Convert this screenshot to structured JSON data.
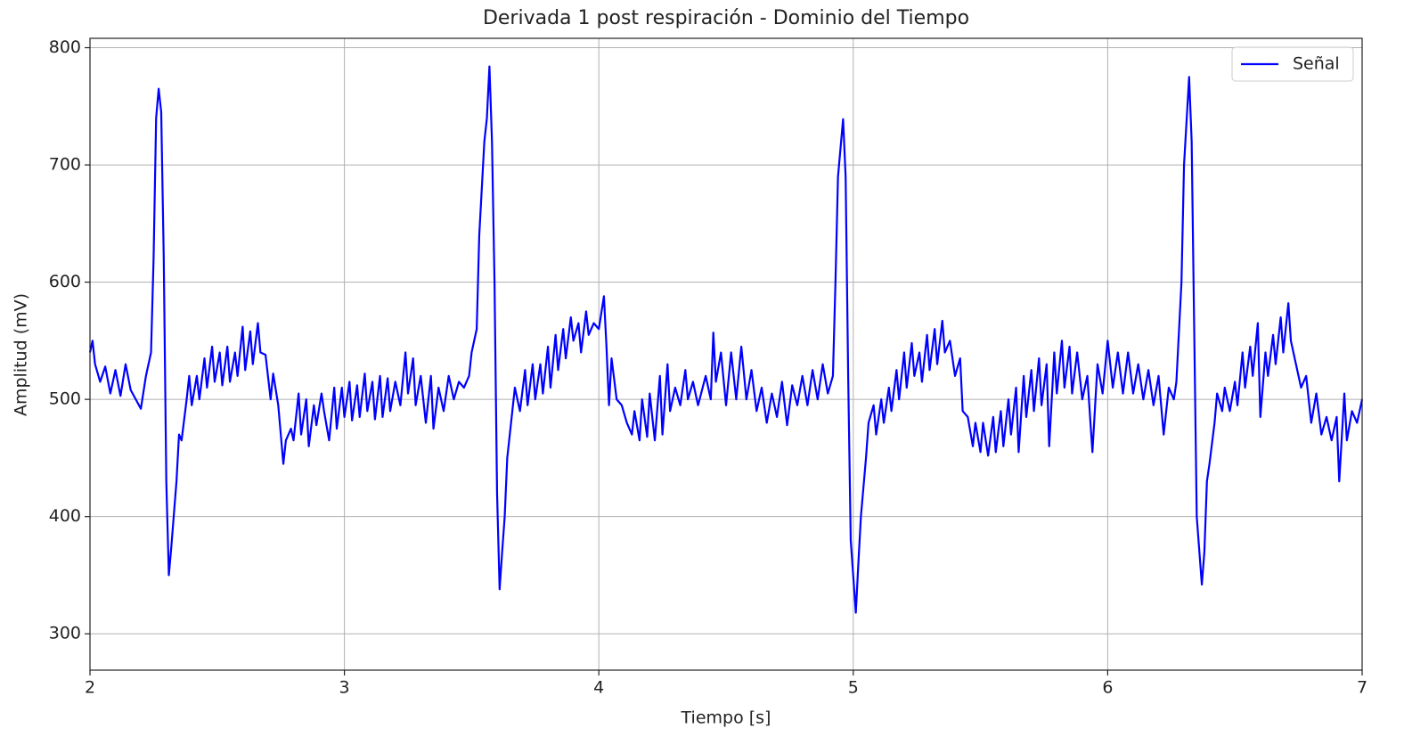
{
  "chart_data": {
    "type": "line",
    "title": "Derivada 1 post respiración - Dominio del Tiempo",
    "xlabel": "Tiempo [s]",
    "ylabel": "Amplitud (mV)",
    "xlim": [
      2,
      7
    ],
    "ylim": [
      269,
      808
    ],
    "xticks": [
      2,
      3,
      4,
      5,
      6,
      7
    ],
    "yticks": [
      300,
      400,
      500,
      600,
      700,
      800
    ],
    "grid": true,
    "legend": "upper right",
    "x": [
      2.0,
      2.01,
      2.02,
      2.04,
      2.06,
      2.08,
      2.1,
      2.12,
      2.14,
      2.16,
      2.18,
      2.2,
      2.22,
      2.24,
      2.25,
      2.26,
      2.27,
      2.28,
      2.29,
      2.3,
      2.31,
      2.32,
      2.34,
      2.35,
      2.36,
      2.38,
      2.39,
      2.4,
      2.42,
      2.43,
      2.45,
      2.46,
      2.48,
      2.49,
      2.51,
      2.52,
      2.54,
      2.55,
      2.57,
      2.58,
      2.6,
      2.61,
      2.63,
      2.64,
      2.66,
      2.67,
      2.69,
      2.71,
      2.72,
      2.74,
      2.76,
      2.77,
      2.79,
      2.8,
      2.82,
      2.83,
      2.85,
      2.86,
      2.88,
      2.89,
      2.91,
      2.92,
      2.94,
      2.96,
      2.97,
      2.99,
      3.0,
      3.02,
      3.03,
      3.05,
      3.06,
      3.08,
      3.09,
      3.11,
      3.12,
      3.14,
      3.15,
      3.17,
      3.18,
      3.2,
      3.22,
      3.24,
      3.25,
      3.27,
      3.28,
      3.3,
      3.32,
      3.34,
      3.35,
      3.37,
      3.39,
      3.41,
      3.43,
      3.45,
      3.47,
      3.49,
      3.5,
      3.52,
      3.53,
      3.55,
      3.56,
      3.57,
      3.58,
      3.59,
      3.6,
      3.61,
      3.62,
      3.63,
      3.64,
      3.65,
      3.67,
      3.69,
      3.71,
      3.72,
      3.74,
      3.75,
      3.77,
      3.78,
      3.8,
      3.81,
      3.83,
      3.84,
      3.86,
      3.87,
      3.89,
      3.9,
      3.92,
      3.93,
      3.95,
      3.96,
      3.98,
      4.0,
      4.02,
      4.03,
      4.04,
      4.05,
      4.07,
      4.09,
      4.11,
      4.13,
      4.14,
      4.16,
      4.17,
      4.19,
      4.2,
      4.22,
      4.24,
      4.25,
      4.27,
      4.28,
      4.3,
      4.32,
      4.34,
      4.35,
      4.37,
      4.39,
      4.42,
      4.44,
      4.45,
      4.46,
      4.48,
      4.5,
      4.52,
      4.54,
      4.56,
      4.58,
      4.6,
      4.62,
      4.64,
      4.66,
      4.68,
      4.7,
      4.72,
      4.74,
      4.76,
      4.78,
      4.8,
      4.82,
      4.84,
      4.86,
      4.88,
      4.9,
      4.92,
      4.93,
      4.94,
      4.96,
      4.97,
      4.98,
      4.99,
      5.01,
      5.02,
      5.03,
      5.05,
      5.06,
      5.08,
      5.09,
      5.11,
      5.12,
      5.14,
      5.15,
      5.17,
      5.18,
      5.2,
      5.21,
      5.23,
      5.24,
      5.26,
      5.27,
      5.29,
      5.3,
      5.32,
      5.33,
      5.35,
      5.36,
      5.38,
      5.4,
      5.42,
      5.43,
      5.45,
      5.47,
      5.48,
      5.5,
      5.51,
      5.53,
      5.55,
      5.56,
      5.58,
      5.59,
      5.61,
      5.62,
      5.64,
      5.65,
      5.67,
      5.68,
      5.7,
      5.71,
      5.73,
      5.74,
      5.76,
      5.77,
      5.79,
      5.8,
      5.82,
      5.83,
      5.85,
      5.86,
      5.88,
      5.9,
      5.92,
      5.94,
      5.96,
      5.98,
      6.0,
      6.02,
      6.04,
      6.06,
      6.08,
      6.1,
      6.12,
      6.14,
      6.16,
      6.18,
      6.2,
      6.22,
      6.24,
      6.26,
      6.27,
      6.29,
      6.3,
      6.32,
      6.33,
      6.34,
      6.35,
      6.37,
      6.38,
      6.39,
      6.4,
      6.42,
      6.43,
      6.45,
      6.46,
      6.48,
      6.5,
      6.51,
      6.53,
      6.54,
      6.56,
      6.57,
      6.59,
      6.6,
      6.62,
      6.63,
      6.65,
      6.66,
      6.68,
      6.69,
      6.71,
      6.72,
      6.74,
      6.76,
      6.78,
      6.8,
      6.82,
      6.84,
      6.86,
      6.88,
      6.9,
      6.91,
      6.93,
      6.94,
      6.96,
      6.98,
      7.0
    ],
    "series": [
      {
        "name": "Señal",
        "color": "#0000ff",
        "values": [
          540,
          550,
          530,
          515,
          528,
          505,
          525,
          503,
          530,
          508,
          500,
          492,
          520,
          540,
          620,
          740,
          765,
          745,
          620,
          430,
          350,
          375,
          430,
          470,
          465,
          500,
          520,
          495,
          520,
          500,
          535,
          510,
          545,
          515,
          540,
          512,
          545,
          515,
          540,
          520,
          562,
          525,
          558,
          530,
          565,
          540,
          538,
          500,
          522,
          495,
          445,
          465,
          475,
          465,
          505,
          470,
          500,
          460,
          495,
          478,
          505,
          490,
          465,
          510,
          475,
          510,
          485,
          515,
          482,
          512,
          485,
          522,
          490,
          515,
          483,
          520,
          485,
          518,
          490,
          515,
          495,
          540,
          505,
          535,
          495,
          520,
          480,
          520,
          475,
          510,
          490,
          520,
          500,
          515,
          510,
          520,
          540,
          560,
          640,
          720,
          740,
          784,
          720,
          600,
          420,
          338,
          370,
          400,
          450,
          470,
          510,
          490,
          525,
          495,
          530,
          500,
          530,
          505,
          545,
          510,
          555,
          525,
          560,
          535,
          570,
          550,
          565,
          540,
          575,
          555,
          565,
          560,
          588,
          545,
          495,
          535,
          500,
          495,
          480,
          470,
          490,
          465,
          500,
          468,
          505,
          465,
          520,
          470,
          530,
          490,
          510,
          495,
          525,
          500,
          515,
          495,
          520,
          500,
          557,
          515,
          540,
          495,
          540,
          500,
          545,
          500,
          525,
          490,
          510,
          480,
          505,
          485,
          515,
          478,
          512,
          495,
          520,
          495,
          525,
          500,
          530,
          505,
          520,
          600,
          690,
          739,
          690,
          520,
          380,
          318,
          360,
          400,
          450,
          480,
          495,
          470,
          500,
          480,
          510,
          490,
          525,
          500,
          540,
          510,
          548,
          520,
          540,
          515,
          555,
          525,
          560,
          530,
          567,
          540,
          550,
          520,
          535,
          490,
          485,
          460,
          480,
          455,
          480,
          452,
          485,
          455,
          490,
          460,
          500,
          470,
          510,
          455,
          520,
          485,
          525,
          490,
          535,
          495,
          530,
          460,
          540,
          505,
          550,
          510,
          545,
          505,
          540,
          500,
          520,
          455,
          530,
          505,
          550,
          510,
          540,
          505,
          540,
          505,
          530,
          500,
          525,
          495,
          520,
          470,
          510,
          500,
          515,
          600,
          700,
          775,
          720,
          560,
          400,
          342,
          370,
          430,
          445,
          480,
          505,
          490,
          510,
          490,
          515,
          495,
          540,
          510,
          545,
          520,
          565,
          485,
          540,
          520,
          555,
          530,
          570,
          540,
          582,
          550,
          530,
          510,
          520,
          480,
          505,
          470,
          485,
          465,
          485,
          430,
          505,
          465,
          490,
          480,
          500
        ]
      }
    ]
  }
}
